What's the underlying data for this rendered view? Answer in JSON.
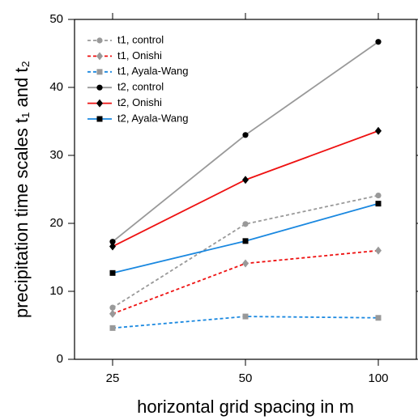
{
  "chart_data": {
    "type": "line",
    "xlabel": "horizontal grid spacing in m",
    "ylabel": "precipitation time scales t₁ and t₂",
    "categories": [
      "25",
      "50",
      "100"
    ],
    "ylim": [
      0,
      50
    ],
    "yticks": [
      0,
      10,
      20,
      30,
      40,
      50
    ],
    "legend": "upper left",
    "series": [
      {
        "name": "t1, control",
        "color": "#999999",
        "dash": true,
        "marker": "circle",
        "marker_color": "#999999",
        "values": [
          7.6,
          19.9,
          24.1
        ]
      },
      {
        "name": "t1, Onishi",
        "color": "#ee1111",
        "dash": true,
        "marker": "diamond",
        "marker_color": "#999999",
        "values": [
          6.7,
          14.1,
          16.0
        ]
      },
      {
        "name": "t1, Ayala-Wang",
        "color": "#1a88e0",
        "dash": true,
        "marker": "square",
        "marker_color": "#999999",
        "values": [
          4.6,
          6.3,
          6.1
        ]
      },
      {
        "name": "t2, control",
        "color": "#999999",
        "dash": false,
        "marker": "circle",
        "marker_color": "#000000",
        "values": [
          17.3,
          33.0,
          46.7
        ]
      },
      {
        "name": "t2, Onishi",
        "color": "#ee1111",
        "dash": false,
        "marker": "diamond",
        "marker_color": "#000000",
        "values": [
          16.6,
          26.4,
          33.6
        ]
      },
      {
        "name": "t2, Ayala-Wang",
        "color": "#1a88e0",
        "dash": false,
        "marker": "square",
        "marker_color": "#000000",
        "values": [
          12.7,
          17.4,
          22.9
        ]
      }
    ]
  }
}
